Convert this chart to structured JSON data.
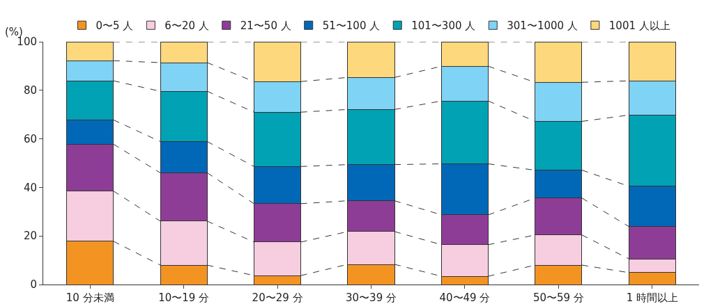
{
  "chart_data": {
    "type": "bar",
    "stacked": true,
    "ylabel": "(%)",
    "categories": [
      "10 分未満",
      "10〜19 分",
      "20〜29 分",
      "30〜39 分",
      "40〜49 分",
      "50〜59 分",
      "1 時間以上"
    ],
    "series": [
      {
        "name": "0〜5 人",
        "color": "#f39422",
        "values": [
          17.8,
          8.0,
          3.7,
          8.3,
          3.4,
          8.0,
          4.9
        ]
      },
      {
        "name": "6〜20 人",
        "color": "#f7cde0",
        "values": [
          20.7,
          18.1,
          13.8,
          13.5,
          13.0,
          12.4,
          5.7
        ]
      },
      {
        "name": "21〜50 人",
        "color": "#8e3d97",
        "values": [
          19.3,
          19.9,
          15.8,
          12.7,
          12.3,
          15.2,
          13.3
        ]
      },
      {
        "name": "51〜100 人",
        "color": "#0068b7",
        "values": [
          10.0,
          12.9,
          15.3,
          14.9,
          21.0,
          11.5,
          16.6
        ]
      },
      {
        "name": "101〜300 人",
        "color": "#00a2b4",
        "values": [
          16.1,
          20.7,
          22.4,
          22.7,
          25.9,
          20.1,
          29.3
        ]
      },
      {
        "name": "301〜1000 人",
        "color": "#7fd3f5",
        "values": [
          8.3,
          11.8,
          12.6,
          13.2,
          14.3,
          16.1,
          14.1
        ]
      },
      {
        "name": "1001 人以上",
        "color": "#fdd87d",
        "values": [
          7.8,
          8.6,
          16.4,
          14.7,
          10.1,
          16.7,
          16.1
        ]
      }
    ],
    "ylim": [
      0,
      100
    ],
    "yticks": [
      0,
      20,
      40,
      60,
      80,
      100
    ],
    "grid": false,
    "legend": "top",
    "line_style": "dashed"
  }
}
